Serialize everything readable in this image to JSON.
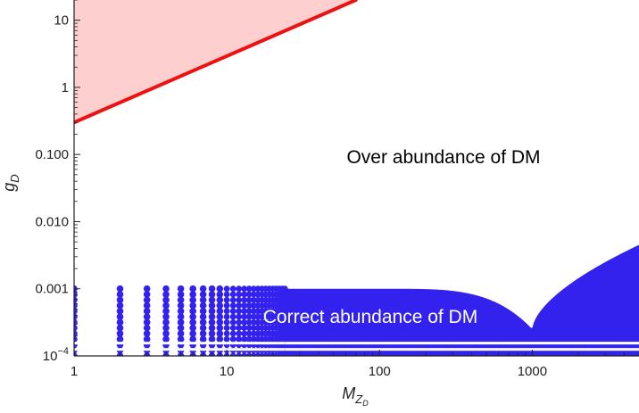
{
  "chart_data": {
    "type": "scatter",
    "title": "",
    "xlabel_main": "M",
    "xlabel_sub": "Z",
    "xlabel_subsub": "D",
    "ylabel_main": "g",
    "ylabel_sub": "D",
    "x_scale": "log",
    "y_scale": "log",
    "xlim": [
      1,
      5000
    ],
    "ylim": [
      0.0001,
      20
    ],
    "x_ticks": [
      {
        "value": 1,
        "label": "1"
      },
      {
        "value": 10,
        "label": "10"
      },
      {
        "value": 100,
        "label": "100"
      },
      {
        "value": 1000,
        "label": "1000"
      }
    ],
    "y_ticks": [
      {
        "value": 0.0001,
        "label": "10",
        "exp": "−4"
      },
      {
        "value": 0.001,
        "label": "0.001",
        "exp": ""
      },
      {
        "value": 0.01,
        "label": "0.010",
        "exp": ""
      },
      {
        "value": 0.1,
        "label": "0.100",
        "exp": ""
      },
      {
        "value": 1,
        "label": "1",
        "exp": ""
      },
      {
        "value": 10,
        "label": "10",
        "exp": ""
      }
    ],
    "excluded_region": {
      "color_fill": "#fdcfcf",
      "color_line": "#ee1111",
      "boundary_line": [
        {
          "x": 1,
          "y": 0.3
        },
        {
          "x": 70,
          "y": 20
        }
      ]
    },
    "correct_region": {
      "color": "#3322ee",
      "g_min": 0.0001,
      "g_max": 0.001,
      "resonance_mass": 1000,
      "resonance_g": 0.00025,
      "right_edge_g": 0.0045,
      "discrete_masses": [
        1,
        2,
        3,
        4,
        5,
        6,
        7,
        8,
        9
      ]
    },
    "annotations": {
      "over": "Over abundance of DM",
      "correct": "Correct abundance of DM"
    },
    "grid": false,
    "legend": "none"
  }
}
